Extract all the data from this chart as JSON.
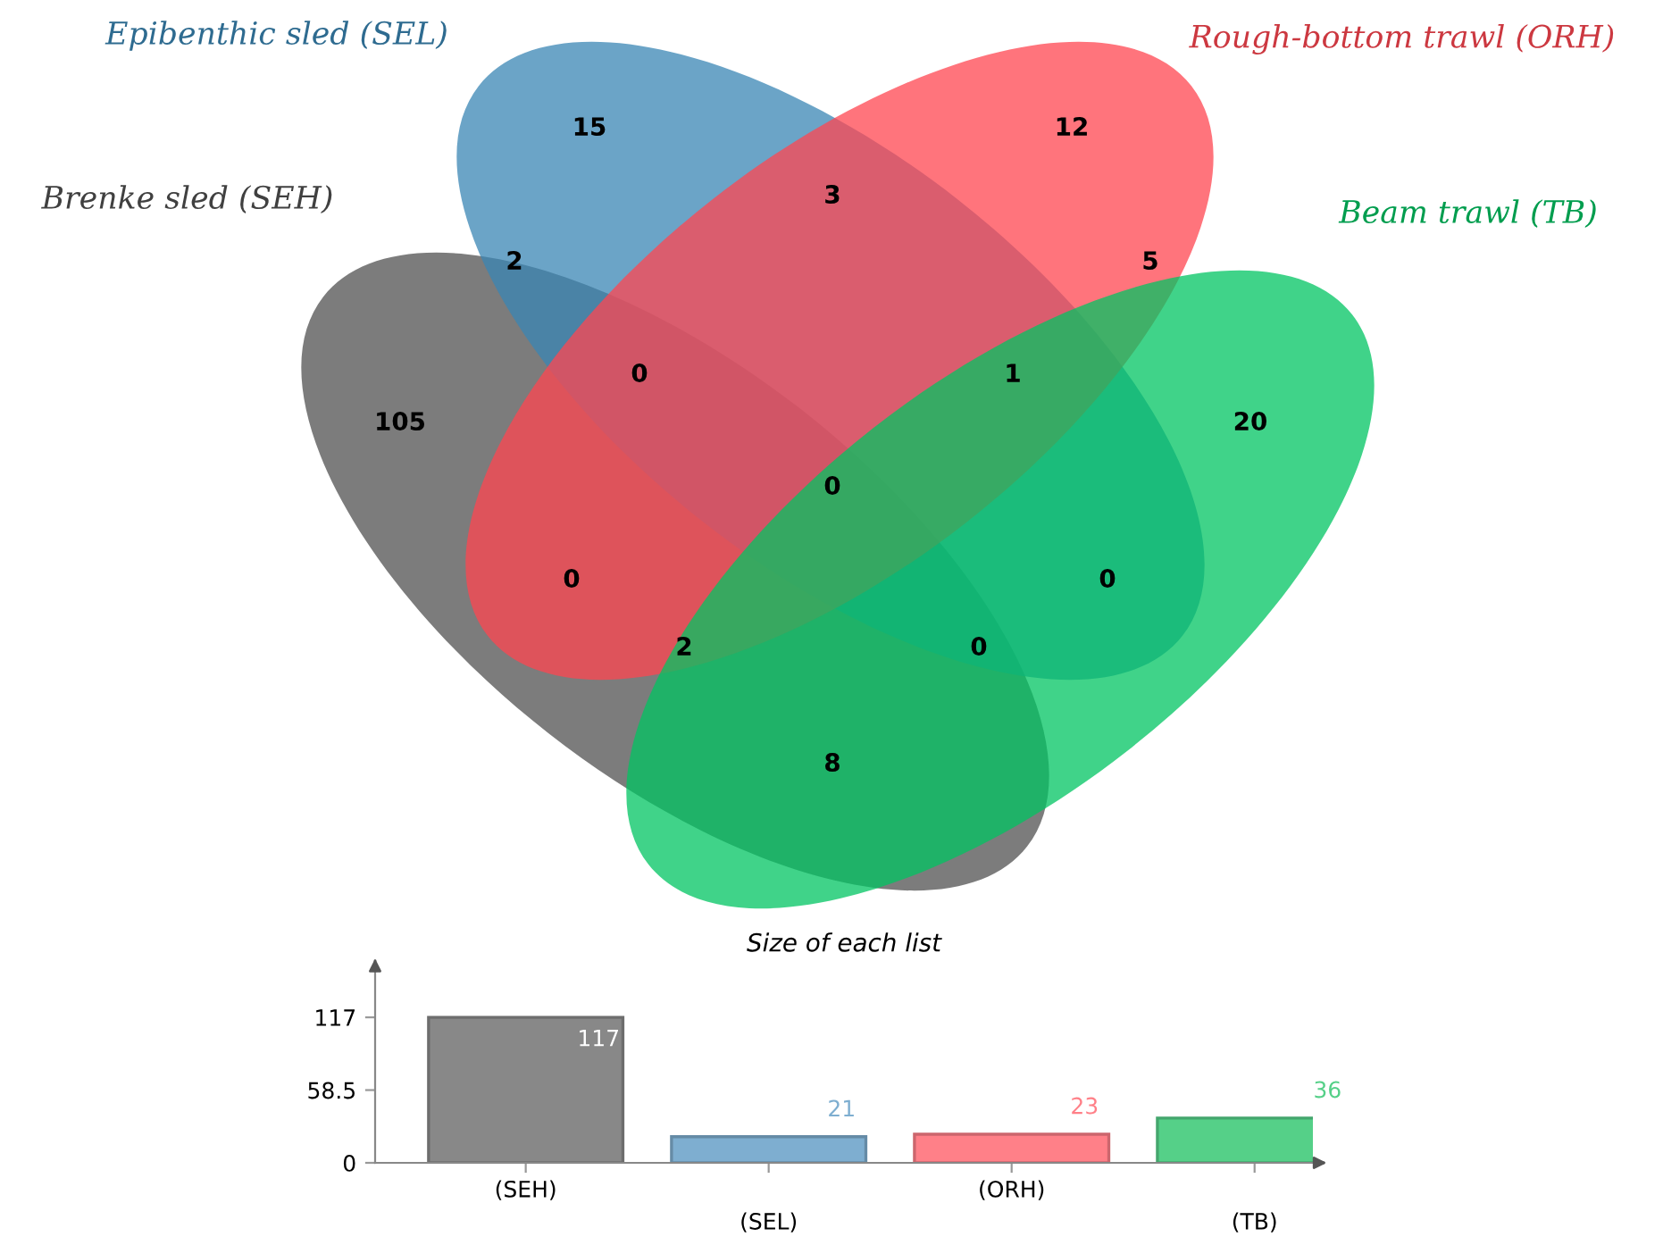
{
  "chart_data": [
    {
      "type": "other",
      "categories": [
        "Brenke sled (SEH)",
        "Epibenthic sled (SEL)",
        "Rough-bottom trawl (ORH)",
        "Beam trawl (TB)"
      ],
      "colors": [
        "#505050",
        "#3a86b4",
        "#ff4650",
        "#00c462"
      ],
      "annotations": [
        "105",
        "15",
        "12",
        "20",
        "2",
        "3",
        "5",
        "8",
        "0",
        "0",
        "0",
        "1",
        "2",
        "0",
        "0"
      ]
    },
    {
      "type": "bar",
      "title": "Size of each list",
      "categories": [
        "(SEH)",
        "(SEL)",
        "(ORH)",
        "(TB)"
      ],
      "values": [
        117,
        21,
        23,
        36
      ],
      "colors": [
        "#888888",
        "#7eaed0",
        "#ff8088",
        "#55d088"
      ],
      "ylim": [
        0,
        158
      ],
      "yticks": [
        0,
        58.5,
        117
      ],
      "data_labels": true,
      "grid": false,
      "tick_labels": "y"
    }
  ]
}
